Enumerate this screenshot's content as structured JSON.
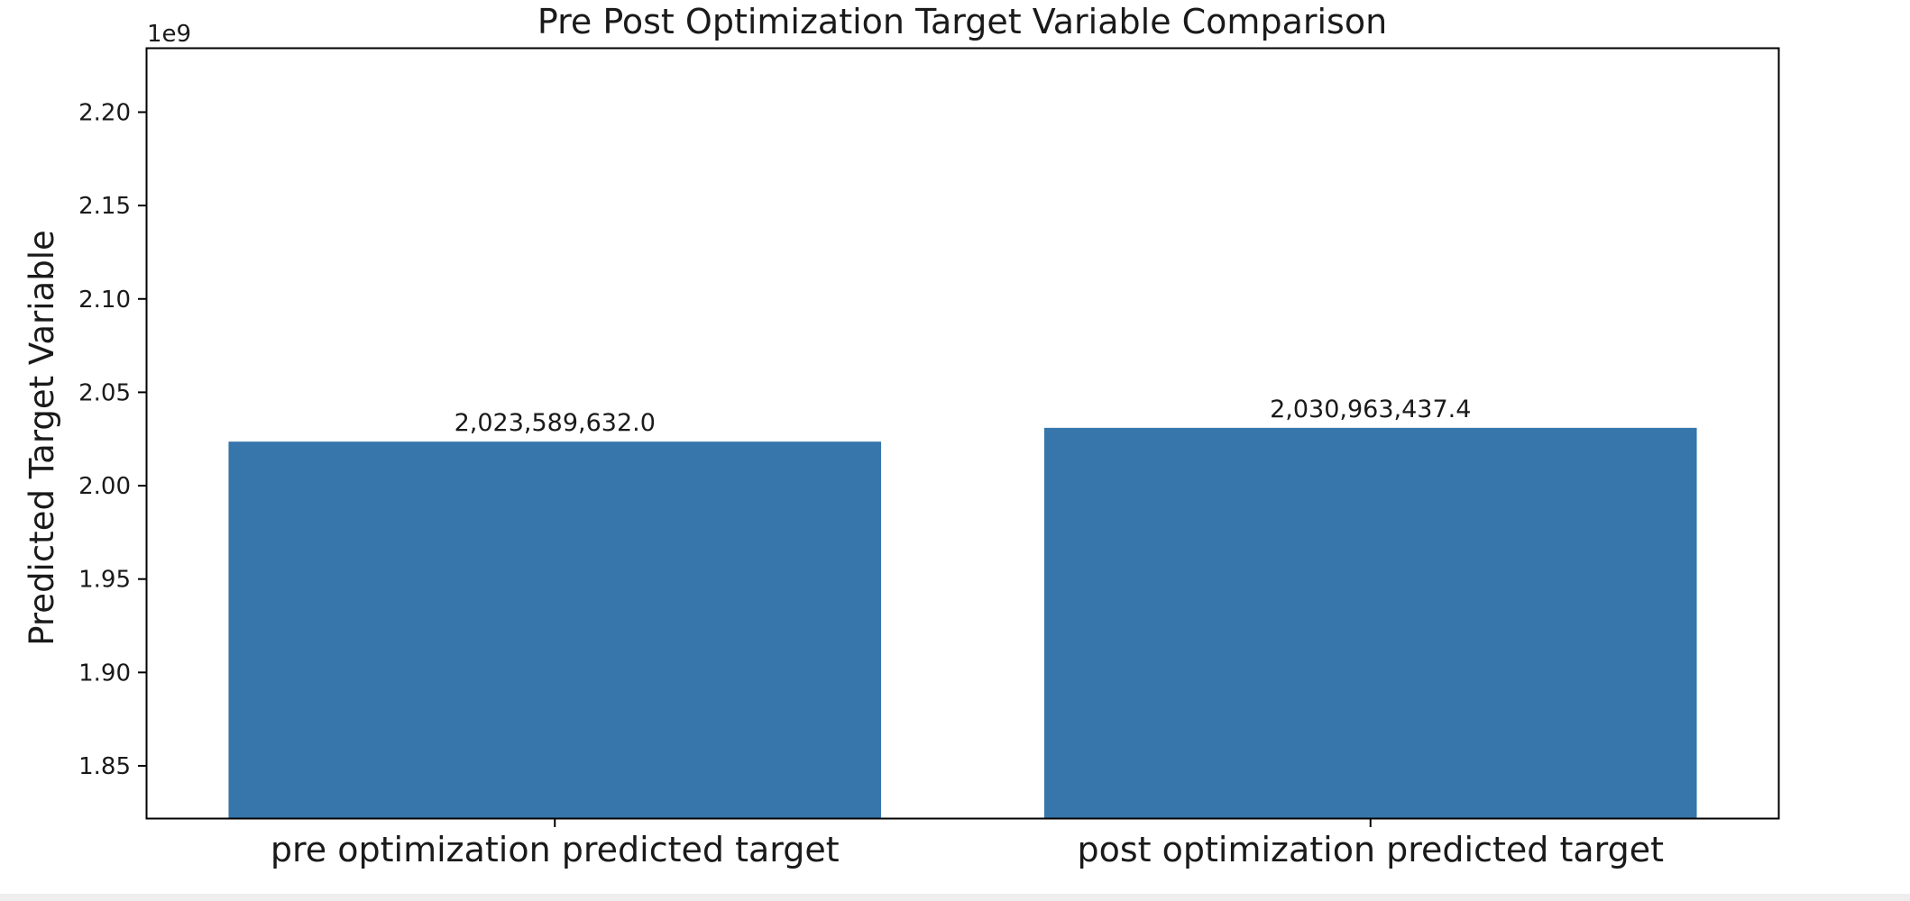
{
  "chart_data": {
    "type": "bar",
    "title": "Pre Post Optimization Target Variable Comparison",
    "xlabel": "",
    "ylabel": "Predicted Target Variable",
    "categories": [
      "pre optimization predicted target",
      "post optimization predicted target"
    ],
    "values": [
      2023589632.0,
      2030963437.4
    ],
    "value_labels": [
      "2,023,589,632.0",
      "2,030,963,437.4"
    ],
    "ylim": [
      1822000000,
      2234000000
    ],
    "yticks": [
      1850000000,
      1900000000,
      1950000000,
      2000000000,
      2050000000,
      2100000000,
      2150000000,
      2200000000
    ],
    "ytick_labels": [
      "1.85",
      "1.90",
      "1.95",
      "2.00",
      "2.05",
      "2.10",
      "2.15",
      "2.20"
    ],
    "offset_label": "1e9",
    "bar_color": "#3776ab",
    "grid": false
  }
}
